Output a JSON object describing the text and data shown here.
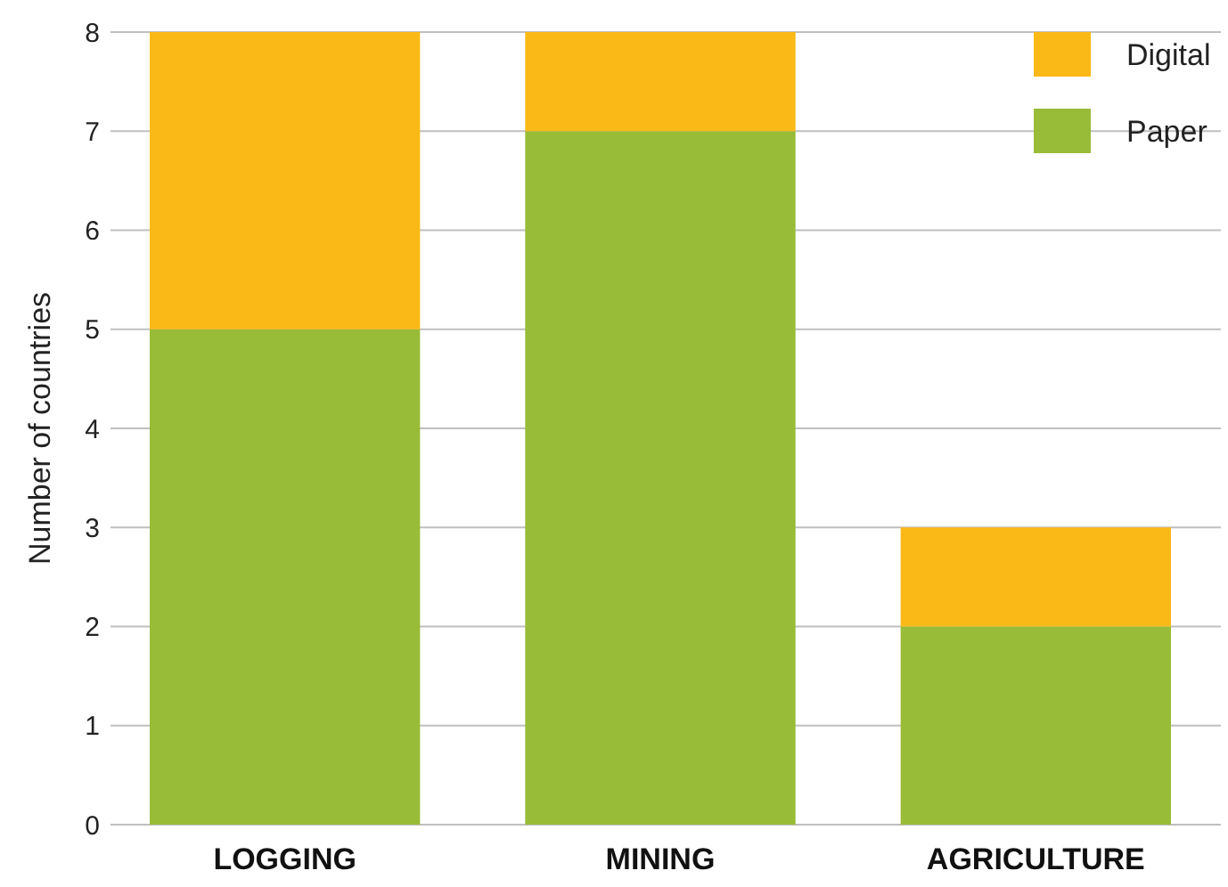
{
  "chart_data": {
    "type": "bar",
    "ylabel": "Number of countries",
    "categories": [
      "LOGGING",
      "MINING",
      "AGRICULTURE"
    ],
    "stacked": true,
    "series": [
      {
        "name": "Paper",
        "color": "#98bc37",
        "values": [
          5,
          7,
          2
        ]
      },
      {
        "name": "Digital",
        "color": "#fbb917",
        "values": [
          3,
          1,
          1
        ]
      }
    ],
    "ylim": [
      0,
      8
    ],
    "yticks": [
      0,
      1,
      2,
      3,
      4,
      5,
      6,
      7,
      8
    ],
    "grid": "y",
    "legend": "top right"
  }
}
